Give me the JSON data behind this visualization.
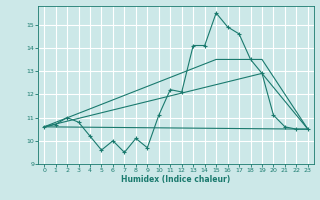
{
  "xlabel": "Humidex (Indice chaleur)",
  "bg_color": "#cce8e8",
  "grid_color": "#ffffff",
  "line_color": "#1a7a6e",
  "xlim": [
    -0.5,
    23.5
  ],
  "ylim": [
    9,
    15.8
  ],
  "xticks": [
    0,
    1,
    2,
    3,
    4,
    5,
    6,
    7,
    8,
    9,
    10,
    11,
    12,
    13,
    14,
    15,
    16,
    17,
    18,
    19,
    20,
    21,
    22,
    23
  ],
  "yticks": [
    9,
    10,
    11,
    12,
    13,
    14,
    15
  ],
  "series1_x": [
    0,
    1,
    2,
    3,
    4,
    5,
    6,
    7,
    8,
    9,
    10,
    11,
    12,
    13,
    14,
    15,
    16,
    17,
    18,
    19,
    20,
    21,
    22,
    23
  ],
  "series1_y": [
    10.6,
    10.7,
    11.0,
    10.8,
    10.2,
    9.6,
    10.0,
    9.5,
    10.1,
    9.7,
    11.1,
    12.2,
    12.1,
    14.1,
    14.1,
    15.5,
    14.9,
    14.6,
    13.5,
    12.9,
    11.1,
    10.6,
    10.5,
    10.5
  ],
  "series2_x": [
    0,
    23
  ],
  "series2_y": [
    10.6,
    10.5
  ],
  "series3_x": [
    0,
    19,
    23
  ],
  "series3_y": [
    10.6,
    12.9,
    10.5
  ],
  "series4_x": [
    0,
    15,
    19,
    23
  ],
  "series4_y": [
    10.6,
    13.5,
    13.5,
    10.5
  ]
}
